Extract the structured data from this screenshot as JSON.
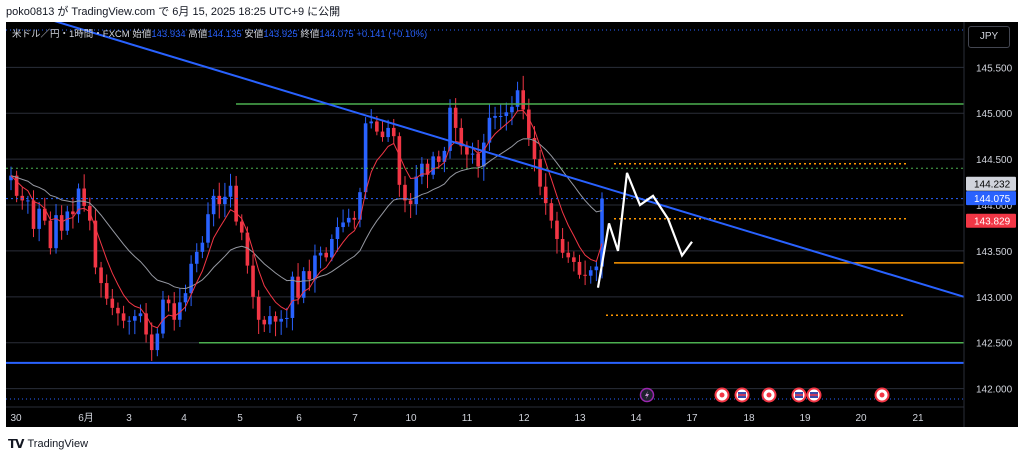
{
  "attribution": "poko0813 が TradingView.com で 6月 15, 2025 18:25 UTC+9 に公開",
  "symbol": {
    "name": "米ドル／円・1時間・FXCM",
    "open_label": "始値",
    "open": "143.934",
    "high_label": "高値",
    "high": "144.135",
    "low_label": "安値",
    "low": "143.925",
    "close_label": "終値",
    "close": "144.075",
    "change": "+0.141 (+0.10%)"
  },
  "currency_button": "JPY",
  "footer": {
    "brand": "TradingView"
  },
  "price_tags": {
    "gray": {
      "value": "144.232",
      "color": "#d1d4dc"
    },
    "blue": {
      "value": "144.075",
      "color": "#2962ff"
    },
    "red": {
      "value": "143.829",
      "color": "#f23645"
    }
  },
  "event_icons": [
    "lightning-icon",
    "central-bank-icon",
    "us-flag-icon",
    "central-bank-icon",
    "us-flag-icon",
    "us-flag-icon",
    "central-bank-icon"
  ],
  "chart_data": {
    "type": "candlestick",
    "y_ticks": [
      "145.500",
      "145.000",
      "144.500",
      "144.000",
      "143.500",
      "143.000",
      "142.500",
      "142.000"
    ],
    "x_ticks": [
      "30",
      "6月",
      "3",
      "4",
      "5",
      "6",
      "7",
      "10",
      "11",
      "12",
      "13",
      "14",
      "17",
      "18",
      "19",
      "20",
      "21"
    ],
    "y_range": [
      141.8,
      145.95
    ],
    "colors": {
      "up": "#2962ff",
      "down": "#f23645",
      "ma_fast": "#f23645",
      "ma_slow": "#9598a1",
      "trendline": "#2962ff",
      "support": "#4caf50",
      "fib": "#ff9800",
      "projection": "#ffffff"
    },
    "closes": [
      144.32,
      144.1,
      144.05,
      144.05,
      143.74,
      143.96,
      143.83,
      143.53,
      143.89,
      143.72,
      143.93,
      143.9,
      144.18,
      143.99,
      143.83,
      143.32,
      143.15,
      142.98,
      142.88,
      142.82,
      142.74,
      142.74,
      142.79,
      142.82,
      142.59,
      142.42,
      142.6,
      142.97,
      142.93,
      142.75,
      142.94,
      143.04,
      143.36,
      143.49,
      143.59,
      143.9,
      144.1,
      144.01,
      144.09,
      144.21,
      143.82,
      143.7,
      143.34,
      143.0,
      142.75,
      142.7,
      142.79,
      142.73,
      142.76,
      142.77,
      143.22,
      142.99,
      143.28,
      143.19,
      143.45,
      143.48,
      143.43,
      143.63,
      143.76,
      143.81,
      143.86,
      143.84,
      144.14,
      144.89,
      144.91,
      144.8,
      144.74,
      144.84,
      144.75,
      144.22,
      144.05,
      144.01,
      144.31,
      144.45,
      144.33,
      144.53,
      144.47,
      144.59,
      145.06,
      144.84,
      144.64,
      144.55,
      144.56,
      144.42,
      144.68,
      144.95,
      144.97,
      144.97,
      145.01,
      145.07,
      145.25,
      145.04,
      144.73,
      144.5,
      144.2,
      144.02,
      143.83,
      143.63,
      143.48,
      143.43,
      143.38,
      143.24,
      143.23,
      143.29,
      143.33,
      144.07
    ],
    "annotations": {
      "trendline": {
        "x": [
          "6/2 00:00",
          "6/21 12:00"
        ],
        "y": [
          146.1,
          143.0
        ]
      },
      "support_lines": [
        {
          "y": 145.1,
          "color": "#4caf50"
        },
        {
          "y": 142.5,
          "color": "#4caf50"
        },
        {
          "y": 142.28,
          "color": "#2962ff"
        }
      ],
      "fib_levels": [
        144.45,
        143.85,
        143.37,
        142.8
      ],
      "projection_path": [
        [
          143.1
        ],
        [
          143.8
        ],
        [
          143.5
        ],
        [
          144.35
        ],
        [
          144.0
        ],
        [
          144.1
        ],
        [
          143.85
        ],
        [
          143.45
        ],
        [
          143.6
        ]
      ]
    }
  }
}
